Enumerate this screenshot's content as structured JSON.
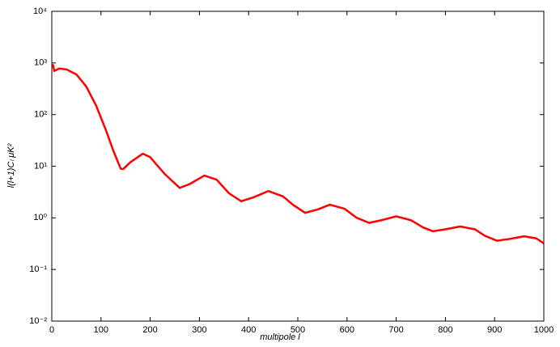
{
  "chart_data": {
    "type": "line",
    "x_label": "multipole  l",
    "y_label": "l(l+1)Cₗ μK²",
    "log_y": true,
    "xlim": [
      0,
      1000
    ],
    "xticks": [
      0,
      100,
      200,
      300,
      400,
      500,
      600,
      700,
      800,
      900,
      1000
    ],
    "ylim": [
      0.01,
      10000
    ],
    "yticks": [
      {
        "value": 0.01,
        "label": "10⁻²"
      },
      {
        "value": 0.1,
        "label": "10⁻¹"
      },
      {
        "value": 1,
        "label": "10⁰"
      },
      {
        "value": 10,
        "label": "10¹"
      },
      {
        "value": 100,
        "label": "10²"
      },
      {
        "value": 1000,
        "label": "10³"
      },
      {
        "value": 10000,
        "label": "10⁴"
      }
    ],
    "x": [
      2,
      5,
      15,
      30,
      50,
      70,
      90,
      110,
      125,
      140,
      145,
      160,
      185,
      200,
      230,
      260,
      280,
      310,
      335,
      360,
      385,
      410,
      440,
      470,
      490,
      515,
      540,
      565,
      595,
      620,
      645,
      670,
      700,
      730,
      755,
      775,
      800,
      830,
      860,
      880,
      905,
      930,
      960,
      985,
      1000
    ],
    "series": [
      {
        "color": "#ff0000",
        "values": [
          950,
          700,
          780,
          750,
          600,
          350,
          150,
          50,
          20,
          9,
          8.8,
          12,
          17.5,
          15,
          7,
          3.8,
          4.5,
          6.6,
          5.5,
          3,
          2.1,
          2.5,
          3.3,
          2.6,
          1.8,
          1.25,
          1.45,
          1.8,
          1.5,
          1.0,
          0.8,
          0.9,
          1.07,
          0.9,
          0.65,
          0.55,
          0.6,
          0.68,
          0.6,
          0.45,
          0.36,
          0.39,
          0.44,
          0.4,
          0.32
        ]
      }
    ]
  }
}
